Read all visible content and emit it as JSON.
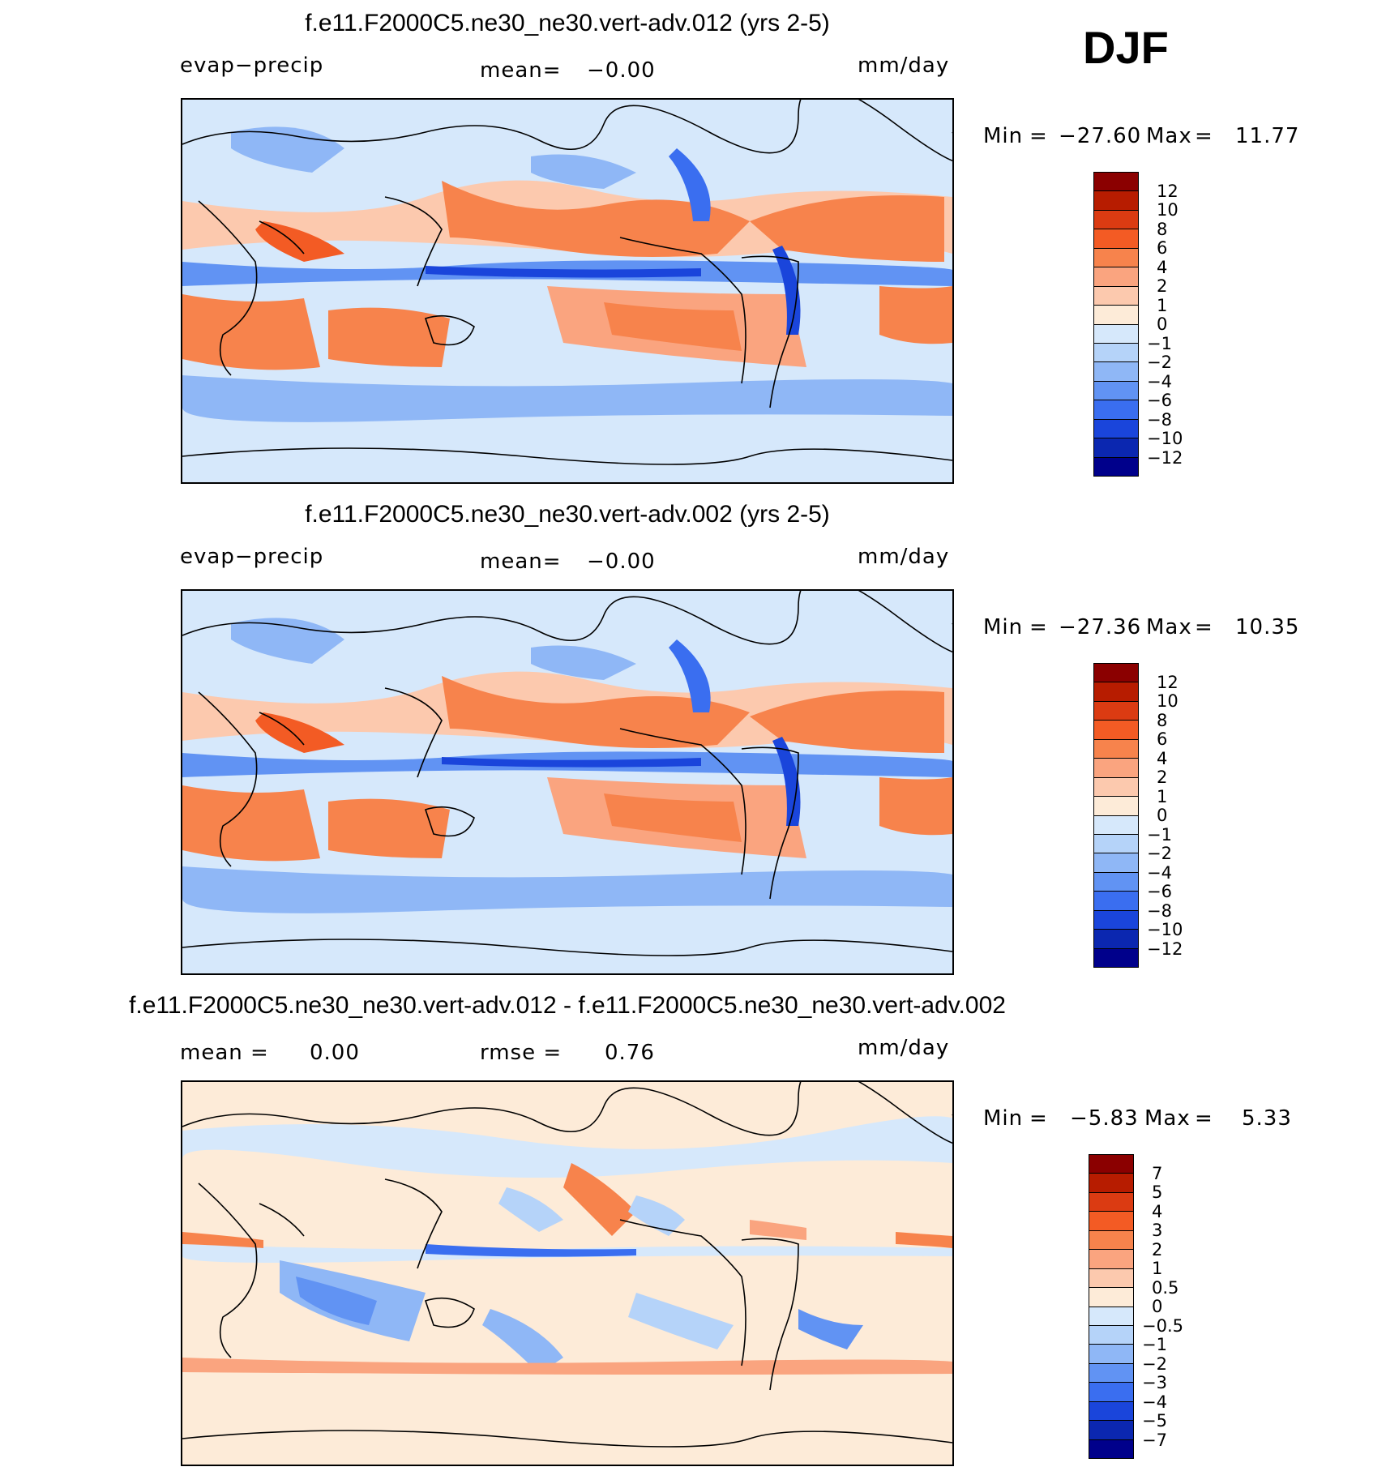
{
  "season": "DJF",
  "chart_data": [
    {
      "type": "heatmap",
      "title": "f.e11.F2000C5.ne30_ne30.vert-adv.012 (yrs 2-5)",
      "variable": "evap−precip",
      "mean_label": "mean=",
      "mean_value": "−0.00",
      "units": "mm/day",
      "min_label": "Min",
      "min_value": "−27.60",
      "max_label": "Max",
      "max_value": "11.77",
      "colorbar_labels": [
        "12",
        "10",
        "8",
        "6",
        "4",
        "2",
        "1",
        "0",
        "−1",
        "−2",
        "−4",
        "−6",
        "−8",
        "−10",
        "−12"
      ],
      "colorbar_colors": [
        "#8b0000",
        "#b71c00",
        "#db3b12",
        "#f35b24",
        "#f7834c",
        "#faa47f",
        "#fcc9ae",
        "#fdebd8",
        "#d6e8fb",
        "#b5d3f9",
        "#8fb7f6",
        "#6193f3",
        "#3a6ef0",
        "#1a45db",
        "#0b27b0",
        "#00008b"
      ]
    },
    {
      "type": "heatmap",
      "title": "f.e11.F2000C5.ne30_ne30.vert-adv.002 (yrs 2-5)",
      "variable": "evap−precip",
      "mean_label": "mean=",
      "mean_value": "−0.00",
      "units": "mm/day",
      "min_label": "Min",
      "min_value": "−27.36",
      "max_label": "Max",
      "max_value": "10.35",
      "colorbar_labels": [
        "12",
        "10",
        "8",
        "6",
        "4",
        "2",
        "1",
        "0",
        "−1",
        "−2",
        "−4",
        "−6",
        "−8",
        "−10",
        "−12"
      ],
      "colorbar_colors": [
        "#8b0000",
        "#b71c00",
        "#db3b12",
        "#f35b24",
        "#f7834c",
        "#faa47f",
        "#fcc9ae",
        "#fdebd8",
        "#d6e8fb",
        "#b5d3f9",
        "#8fb7f6",
        "#6193f3",
        "#3a6ef0",
        "#1a45db",
        "#0b27b0",
        "#00008b"
      ]
    },
    {
      "type": "heatmap",
      "title": "f.e11.F2000C5.ne30_ne30.vert-adv.012 - f.e11.F2000C5.ne30_ne30.vert-adv.002",
      "mean_label": "mean =",
      "mean_value": "0.00",
      "rmse_label": "rmse =",
      "rmse_value": "0.76",
      "units": "mm/day",
      "min_label": "Min",
      "min_value": "−5.83",
      "max_label": "Max",
      "max_value": "5.33",
      "colorbar_labels": [
        "7",
        "5",
        "4",
        "3",
        "2",
        "1",
        "0.5",
        "0",
        "−0.5",
        "−1",
        "−2",
        "−3",
        "−4",
        "−5",
        "−7"
      ],
      "colorbar_colors": [
        "#8b0000",
        "#b71c00",
        "#db3b12",
        "#f35b24",
        "#f7834c",
        "#faa47f",
        "#fcc9ae",
        "#fdebd8",
        "#d6e8fb",
        "#b5d3f9",
        "#8fb7f6",
        "#6193f3",
        "#3a6ef0",
        "#1a45db",
        "#0b27b0",
        "#00008b"
      ]
    }
  ]
}
